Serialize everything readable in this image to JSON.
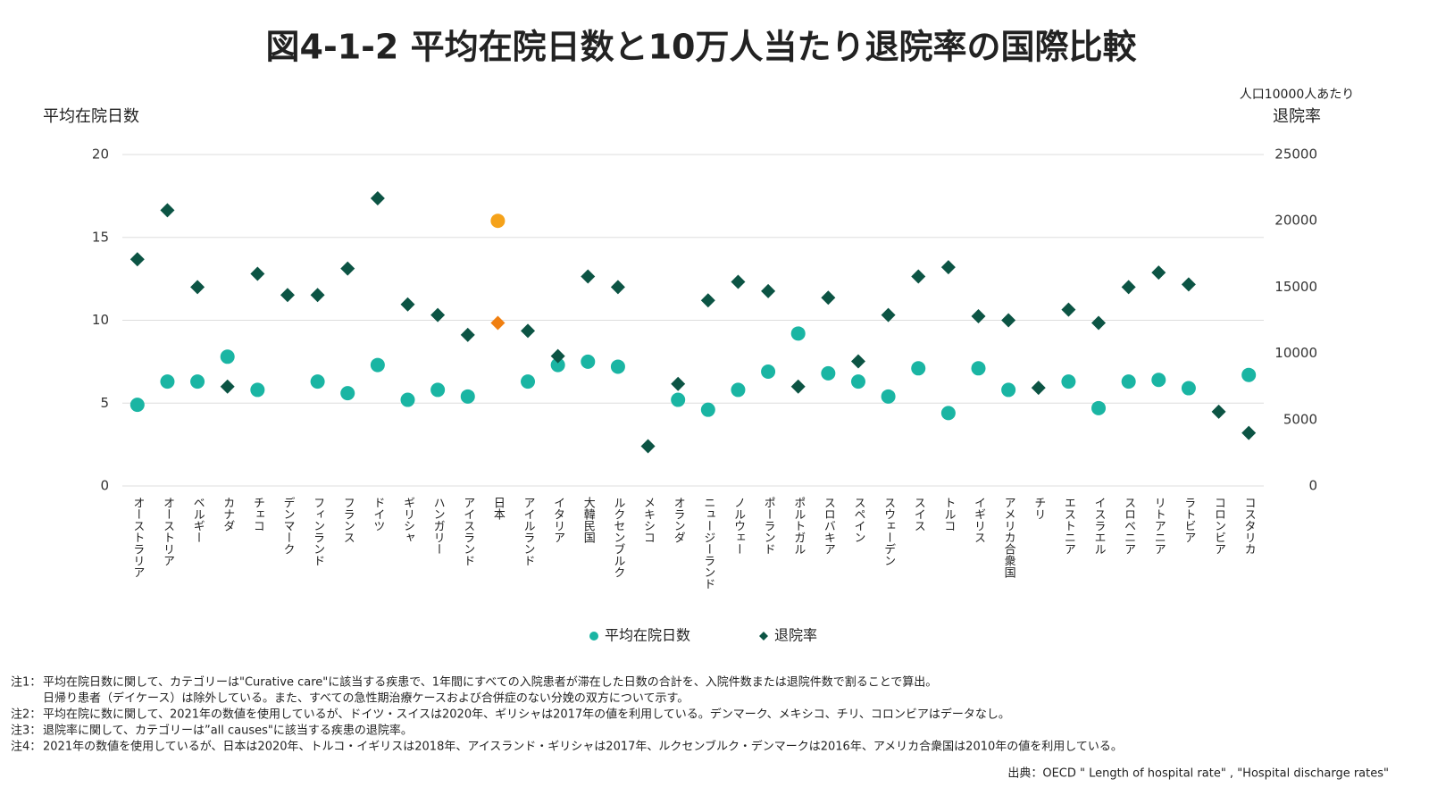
{
  "chart_data": {
    "type": "scatter",
    "title": "図4-1-2 平均在院日数と10万人当たり退院率の国際比較",
    "y_label": "平均在院日数",
    "y2_label_top": "人口10000人あたり",
    "y2_label": "退院率",
    "categories": [
      "オーストラリア",
      "オーストリア",
      "ベルギー",
      "カナダ",
      "チェコ",
      "デンマーク",
      "フィンランド",
      "フランス",
      "ドイツ",
      "ギリシャ",
      "ハンガリー",
      "アイスランド",
      "日本",
      "アイルランド",
      "イタリア",
      "大韓民国",
      "ルクセンブルク",
      "メキシコ",
      "オランダ",
      "ニュージーランド",
      "ノルウェー",
      "ポーランド",
      "ポルトガル",
      "スロバキア",
      "スペイン",
      "スウェーデン",
      "スイス",
      "トルコ",
      "イギリス",
      "アメリカ合衆国",
      "チリ",
      "エストニア",
      "イスラエル",
      "スロベニア",
      "リトアニア",
      "ラトビア",
      "コロンビア",
      "コスタリカ"
    ],
    "highlight_category": "日本",
    "series": [
      {
        "name": "平均在院日数",
        "marker": "circle",
        "color": "#1ab5a3",
        "highlight_color": "#f5a21a",
        "values": [
          4.9,
          6.3,
          6.3,
          7.8,
          5.8,
          null,
          6.3,
          5.6,
          7.3,
          5.2,
          5.8,
          5.4,
          16.0,
          6.3,
          7.3,
          7.5,
          7.2,
          null,
          5.2,
          4.6,
          5.8,
          6.9,
          9.2,
          6.8,
          6.3,
          5.4,
          7.1,
          4.4,
          7.1,
          5.8,
          null,
          6.3,
          4.7,
          6.3,
          6.4,
          5.9,
          null,
          6.7
        ]
      },
      {
        "name": "退院率",
        "marker": "diamond",
        "axis": "y2",
        "color": "#0c5444",
        "highlight_color": "#f07f10",
        "values": [
          17100,
          20800,
          15000,
          7500,
          16000,
          14400,
          14400,
          16400,
          21700,
          13700,
          12900,
          11400,
          12300,
          11700,
          9800,
          15800,
          15000,
          3000,
          7700,
          14000,
          15400,
          14700,
          7500,
          14200,
          9400,
          12900,
          15800,
          16500,
          12800,
          12500,
          7400,
          13300,
          12300,
          15000,
          16100,
          15200,
          5600,
          4000
        ]
      }
    ],
    "ylim": [
      0,
      20
    ],
    "yticks": [
      0,
      5,
      10,
      15,
      20
    ],
    "y2lim": [
      0,
      25000
    ],
    "y2ticks": [
      0,
      5000,
      10000,
      15000,
      20000,
      25000
    ],
    "grid": true,
    "legend": "bottom"
  },
  "notes": [
    {
      "label": "注1：",
      "text": [
        "平均在院日数に関して、カテゴリーは\"Curative care\"に該当する疾患で、1年間にすべての入院患者が滞在した日数の合計を、入院件数または退院件数で割ることで算出。",
        "日帰り患者（デイケース）は除外している。また、すべての急性期治療ケースおよび合併症のない分娩の双方について示す。"
      ]
    },
    {
      "label": "注2：",
      "text": [
        "平均在院に数に関して、2021年の数値を使用しているが、ドイツ・スイスは2020年、ギリシャは2017年の値を利用している。デンマーク、メキシコ、チリ、コロンビアはデータなし。"
      ]
    },
    {
      "label": "注3：",
      "text": [
        "退院率に関して、カテゴリーは”all causes\"に該当する疾患の退院率。"
      ]
    },
    {
      "label": "注4：",
      "text": [
        "2021年の数値を使用しているが、日本は2020年、トルコ・イギリスは2018年、アイスランド・ギリシャは2017年、ルクセンブルク・デンマークは2016年、アメリカ合衆国は2010年の値を利用している。"
      ]
    }
  ],
  "source": "出典：OECD \" Length of hospital rate\" , \"Hospital discharge rates\""
}
